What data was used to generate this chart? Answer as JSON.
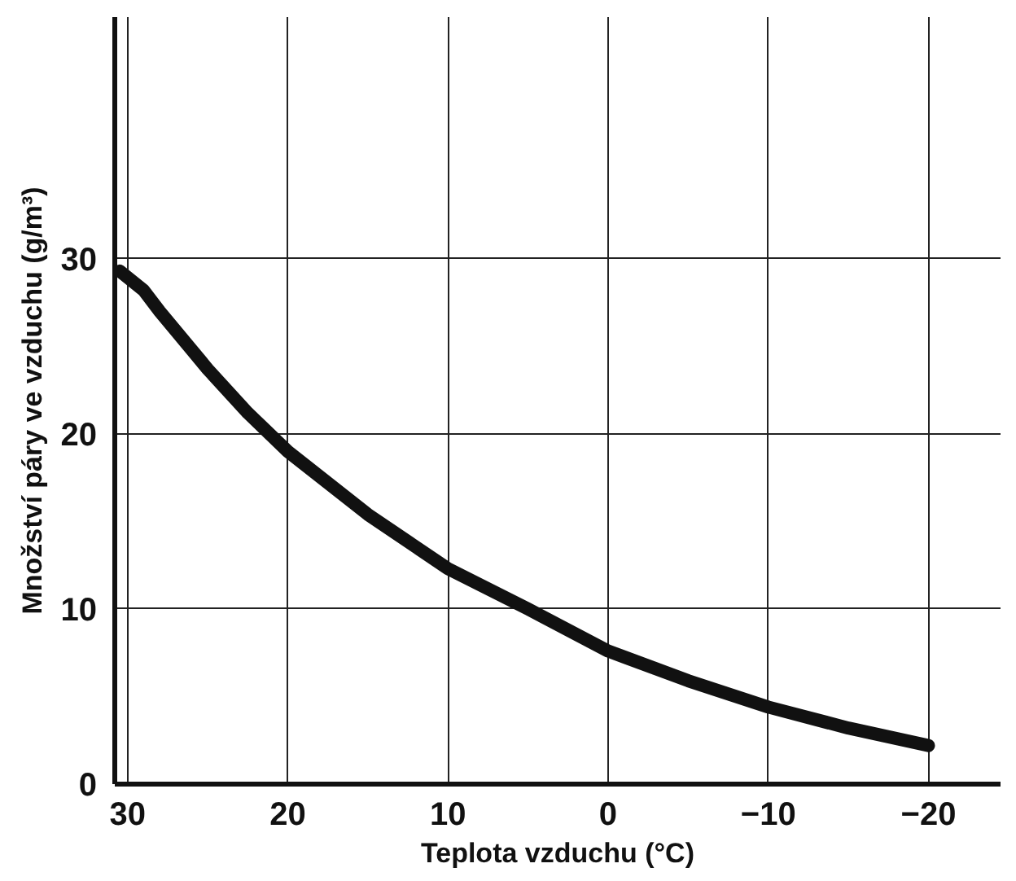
{
  "chart_data": {
    "type": "line",
    "xlabel": "Teplota vzduchu (°C)",
    "ylabel": "Množství páry ve vzduchu (g/m³)",
    "x": [
      30.5,
      29,
      28,
      26,
      25,
      22.5,
      20,
      15,
      10,
      5,
      0,
      -5,
      -10,
      -15,
      -20
    ],
    "series": [
      {
        "color": "#111111",
        "values": [
          29.3,
          28.2,
          27,
          24.8,
          23.7,
          21.2,
          19,
          15.4,
          12.3,
          10,
          7.6,
          5.9,
          4.4,
          3.2,
          2.2
        ]
      }
    ],
    "xlim": [
      30.8,
      -24.5
    ],
    "ylim": [
      0,
      43.8
    ],
    "xticks": [
      30,
      20,
      10,
      0,
      -10,
      -20
    ],
    "yticks": [
      0,
      10,
      20,
      30
    ],
    "grid": true,
    "line_style": "solid",
    "marker": "none"
  }
}
